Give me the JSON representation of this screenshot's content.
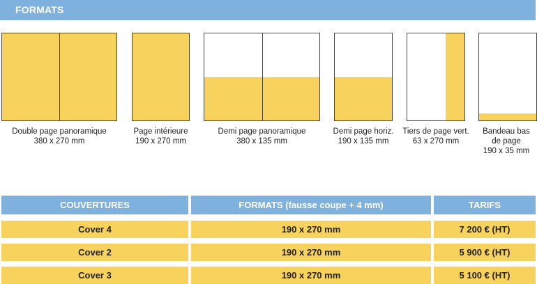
{
  "header": {
    "title": "FORMATS"
  },
  "formats": [
    {
      "line1": "Double page panoramique",
      "line2": "380 x 270 mm"
    },
    {
      "line1": "Page intérieure",
      "line2": "190 x 270 mm"
    },
    {
      "line1": "Demi page panoramique",
      "line2": "380 x 135 mm"
    },
    {
      "line1": "Demi page horiz.",
      "line2": "190 x 135 mm"
    },
    {
      "line1": "Tiers de page vert.",
      "line2": "63 x 270 mm"
    },
    {
      "line1": "Bandeau bas",
      "line2": "de page",
      "line3": "190 x 35 mm"
    }
  ],
  "table": {
    "headers": [
      "COUVERTURES",
      "FORMATS (fausse coupe + 4 mm)",
      "TARIFS"
    ],
    "rows": [
      [
        "Cover 4",
        "190 x 270 mm",
        "7 200 € (HT)"
      ],
      [
        "Cover 2",
        "190 x 270 mm",
        "5 900 € (HT)"
      ],
      [
        "Cover 3",
        "190 x 270 mm",
        "5 100 € (HT)"
      ]
    ]
  },
  "colors": {
    "header_blue": "#7fb1df",
    "yellow": "#f7d25c",
    "outline": "#444444"
  }
}
